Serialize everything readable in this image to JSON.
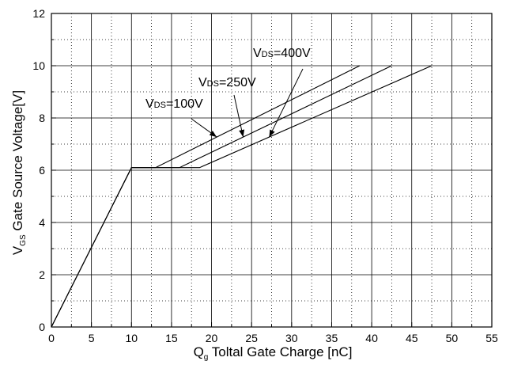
{
  "chart_data": {
    "type": "line",
    "title": "",
    "xlabel": {
      "main": "Q",
      "sub": "g",
      "rest": " Toltal Gate Charge [nC]"
    },
    "ylabel": {
      "main": "V",
      "sub": "GS",
      "rest": " Gate Source Voltage[V]"
    },
    "xlim": [
      0,
      55
    ],
    "ylim": [
      0,
      12
    ],
    "xticks": [
      "0",
      "5",
      "10",
      "15",
      "20",
      "25",
      "30",
      "35",
      "40",
      "45",
      "50",
      "55"
    ],
    "yticks": [
      "0",
      "2",
      "4",
      "6",
      "8",
      "10",
      "12"
    ],
    "grid": true,
    "legend": "none",
    "series": [
      {
        "name": "VDS=100V",
        "label_main": "V",
        "label_sub": "DS",
        "label_rest": "=100V",
        "points": [
          [
            0,
            0
          ],
          [
            10,
            6.1
          ],
          [
            13,
            6.1
          ],
          [
            38.5,
            10
          ]
        ]
      },
      {
        "name": "VDS=250V",
        "label_main": "V",
        "label_sub": "DS",
        "label_rest": "=250V",
        "points": [
          [
            0,
            0
          ],
          [
            10,
            6.1
          ],
          [
            16,
            6.1
          ],
          [
            42.5,
            10
          ]
        ]
      },
      {
        "name": "VDS=400V",
        "label_main": "V",
        "label_sub": "DS",
        "label_rest": "=400V",
        "points": [
          [
            0,
            0
          ],
          [
            10,
            6.1
          ],
          [
            18.5,
            6.1
          ],
          [
            47.5,
            10
          ]
        ]
      }
    ],
    "colors": {
      "line": "#000000",
      "grid": "#000000",
      "background": "#ffffff"
    }
  }
}
